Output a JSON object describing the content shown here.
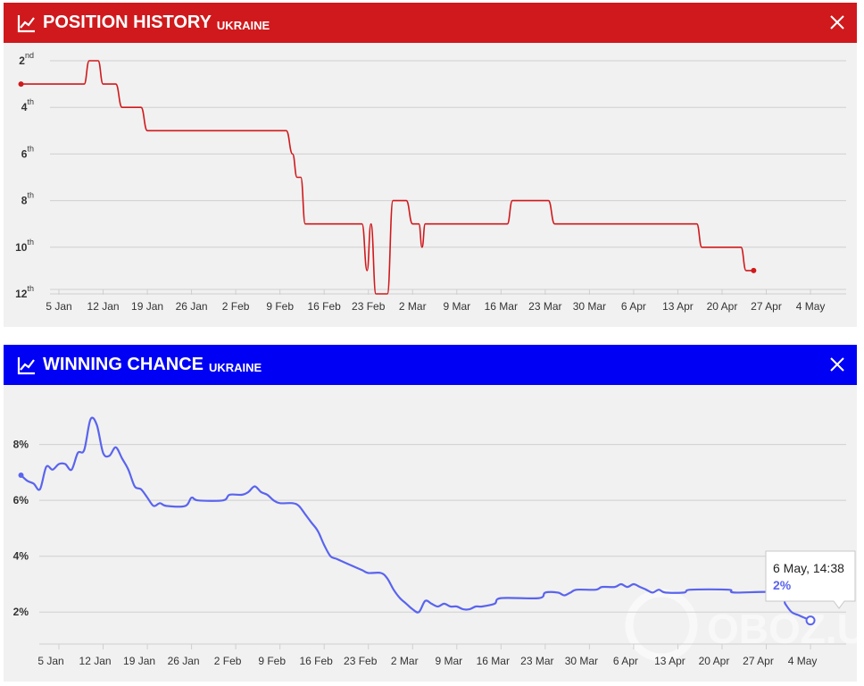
{
  "panel1": {
    "title": "POSITION HISTORY",
    "subtitle": "UKRAINE",
    "header_color": "#d0191c"
  },
  "panel2": {
    "title": "WINNING CHANCE",
    "subtitle": "UKRAINE",
    "header_color": "#0000f5"
  },
  "icons": {
    "header": "line-chart-icon",
    "close": "close-icon"
  },
  "tooltip": {
    "date": "6 May, 14:38",
    "value": "2%"
  },
  "watermark": "OBOZ.UA",
  "chart_data": [
    {
      "type": "line",
      "title": "POSITION HISTORY",
      "subtitle": "UKRAINE",
      "color": "#d0191c",
      "y_reversed": true,
      "ylim": [
        1.5,
        12.5
      ],
      "y_ticks": [
        {
          "v": 2,
          "n": "2",
          "s": "nd"
        },
        {
          "v": 4,
          "n": "4",
          "s": "th"
        },
        {
          "v": 6,
          "n": "6",
          "s": "th"
        },
        {
          "v": 8,
          "n": "8",
          "s": "th"
        },
        {
          "v": 10,
          "n": "10",
          "s": "th"
        },
        {
          "v": 12,
          "n": "12",
          "s": "th"
        }
      ],
      "x_ticks": [
        "5 Jan",
        "12 Jan",
        "19 Jan",
        "26 Jan",
        "2 Feb",
        "9 Feb",
        "16 Feb",
        "23 Feb",
        "2 Mar",
        "9 Mar",
        "16 Mar",
        "23 Mar",
        "30 Mar",
        "6 Apr",
        "13 Apr",
        "20 Apr",
        "27 Apr",
        "4 May"
      ],
      "xlim": [
        0,
        127
      ],
      "points": [
        [
          3,
          3
        ],
        [
          13,
          3
        ],
        [
          13.8,
          2
        ],
        [
          15.2,
          2
        ],
        [
          16,
          3
        ],
        [
          18,
          3
        ],
        [
          19,
          4
        ],
        [
          22,
          4
        ],
        [
          23,
          5
        ],
        [
          45,
          5
        ],
        [
          46,
          6
        ],
        [
          46.7,
          7
        ],
        [
          47.3,
          7
        ],
        [
          48,
          9
        ],
        [
          57,
          9
        ],
        [
          57.8,
          11
        ],
        [
          58.4,
          9
        ],
        [
          59.2,
          12
        ],
        [
          61,
          12
        ],
        [
          61.9,
          8
        ],
        [
          64,
          8
        ],
        [
          65,
          9
        ],
        [
          66,
          9
        ],
        [
          66.5,
          10
        ],
        [
          67,
          9
        ],
        [
          80,
          9
        ],
        [
          80.8,
          8
        ],
        [
          86.5,
          8
        ],
        [
          87.5,
          9
        ],
        [
          110,
          9
        ],
        [
          110.8,
          10
        ],
        [
          117,
          10
        ],
        [
          117.8,
          11
        ],
        [
          119,
          11
        ]
      ]
    },
    {
      "type": "line",
      "title": "WINNING CHANCE",
      "subtitle": "UKRAINE",
      "color": "#5a64ee",
      "ylim": [
        1.4,
        9.3
      ],
      "y_ticks": [
        {
          "v": 2,
          "label": "2%"
        },
        {
          "v": 4,
          "label": "4%"
        },
        {
          "v": 6,
          "label": "6%"
        },
        {
          "v": 8,
          "label": "8%"
        }
      ],
      "x_ticks": [
        "5 Jan",
        "12 Jan",
        "19 Jan",
        "26 Jan",
        "2 Feb",
        "9 Feb",
        "16 Feb",
        "23 Feb",
        "2 Mar",
        "9 Mar",
        "16 Mar",
        "23 Mar",
        "30 Mar",
        "6 Apr",
        "13 Apr",
        "20 Apr",
        "27 Apr",
        "4 May"
      ],
      "xlim": [
        0,
        127
      ],
      "points": [
        [
          3,
          6.9
        ],
        [
          4,
          6.7
        ],
        [
          5,
          6.6
        ],
        [
          6,
          6.4
        ],
        [
          7,
          7.2
        ],
        [
          8,
          7.1
        ],
        [
          9,
          7.3
        ],
        [
          10,
          7.3
        ],
        [
          11,
          7.1
        ],
        [
          12,
          7.7
        ],
        [
          13,
          7.8
        ],
        [
          14,
          8.9
        ],
        [
          15,
          8.7
        ],
        [
          16,
          7.7
        ],
        [
          17,
          7.6
        ],
        [
          18,
          7.9
        ],
        [
          19,
          7.5
        ],
        [
          20,
          7.1
        ],
        [
          21,
          6.5
        ],
        [
          22,
          6.4
        ],
        [
          23,
          6.1
        ],
        [
          24,
          5.8
        ],
        [
          25,
          5.9
        ],
        [
          26,
          5.8
        ],
        [
          29,
          5.8
        ],
        [
          30,
          6.1
        ],
        [
          31,
          6.0
        ],
        [
          35,
          6.0
        ],
        [
          36,
          6.2
        ],
        [
          38,
          6.2
        ],
        [
          39,
          6.3
        ],
        [
          40,
          6.5
        ],
        [
          41,
          6.3
        ],
        [
          42,
          6.2
        ],
        [
          43,
          6.0
        ],
        [
          44,
          5.9
        ],
        [
          46,
          5.9
        ],
        [
          47,
          5.8
        ],
        [
          48,
          5.5
        ],
        [
          49,
          5.2
        ],
        [
          50,
          4.9
        ],
        [
          51,
          4.4
        ],
        [
          52,
          4.0
        ],
        [
          53,
          3.9
        ],
        [
          55,
          3.7
        ],
        [
          57,
          3.5
        ],
        [
          58,
          3.4
        ],
        [
          60,
          3.4
        ],
        [
          61,
          3.2
        ],
        [
          62,
          2.8
        ],
        [
          63,
          2.5
        ],
        [
          64,
          2.3
        ],
        [
          65,
          2.1
        ],
        [
          66,
          2.0
        ],
        [
          67,
          2.4
        ],
        [
          68,
          2.3
        ],
        [
          69,
          2.2
        ],
        [
          70,
          2.3
        ],
        [
          71,
          2.2
        ],
        [
          72,
          2.2
        ],
        [
          73,
          2.1
        ],
        [
          74,
          2.1
        ],
        [
          75,
          2.2
        ],
        [
          76,
          2.2
        ],
        [
          78,
          2.3
        ],
        [
          79,
          2.5
        ],
        [
          85,
          2.5
        ],
        [
          86,
          2.7
        ],
        [
          88,
          2.7
        ],
        [
          89,
          2.6
        ],
        [
          90,
          2.7
        ],
        [
          91,
          2.8
        ],
        [
          94,
          2.8
        ],
        [
          95,
          2.9
        ],
        [
          97,
          2.9
        ],
        [
          98,
          3.0
        ],
        [
          99,
          2.9
        ],
        [
          100,
          3.0
        ],
        [
          101,
          2.9
        ],
        [
          102,
          2.8
        ],
        [
          103,
          2.7
        ],
        [
          104,
          2.8
        ],
        [
          105,
          2.7
        ],
        [
          108,
          2.7
        ],
        [
          109,
          2.8
        ],
        [
          115,
          2.8
        ],
        [
          116,
          2.7
        ],
        [
          123,
          2.7
        ],
        [
          124,
          2.3
        ],
        [
          125,
          2.0
        ],
        [
          126,
          1.9
        ],
        [
          127,
          1.8
        ],
        [
          128,
          1.7
        ]
      ]
    }
  ]
}
